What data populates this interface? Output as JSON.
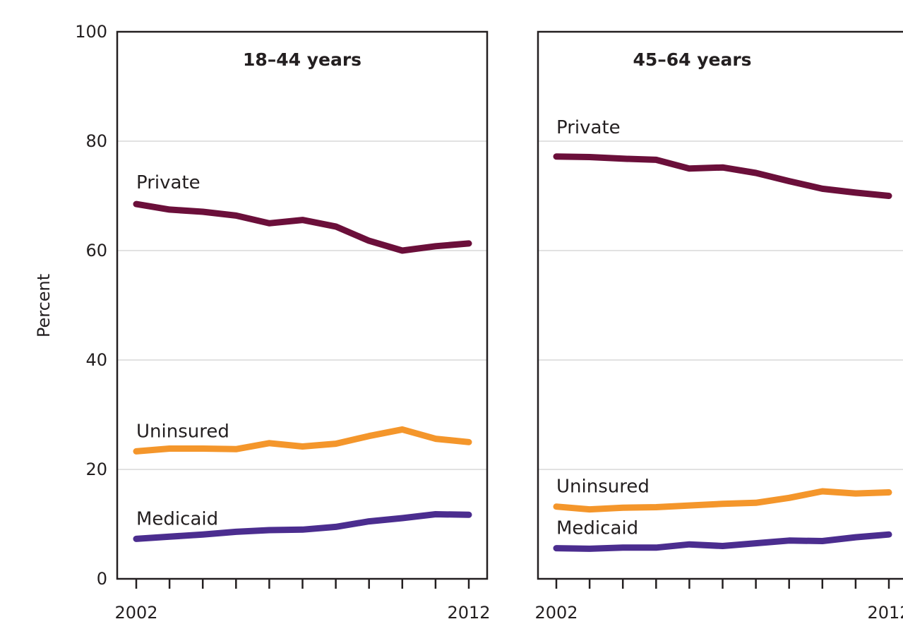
{
  "chart_data": {
    "type": "line",
    "ylabel": "Percent",
    "ylim": [
      0,
      100
    ],
    "yticks": [
      "0",
      "20",
      "40",
      "60",
      "80",
      "100"
    ],
    "x": [
      2002,
      2003,
      2004,
      2005,
      2006,
      2007,
      2008,
      2009,
      2010,
      2011,
      2012
    ],
    "x_tick_labels": [
      "2002",
      "2012"
    ],
    "grid": true,
    "colors": {
      "Private": "#6b0f3a",
      "Uninsured": "#f4962b",
      "Medicaid": "#4b2d8f",
      "grid": "#d9d9d9",
      "axis": "#231f20"
    },
    "panels": [
      {
        "title": "18–44 years",
        "series": [
          {
            "name": "Private",
            "values": [
              68.5,
              67.5,
              67.1,
              66.4,
              65.0,
              65.6,
              64.4,
              61.8,
              60.0,
              60.8,
              61.3
            ]
          },
          {
            "name": "Uninsured",
            "values": [
              23.3,
              23.8,
              23.8,
              23.7,
              24.8,
              24.2,
              24.7,
              26.1,
              27.3,
              25.6,
              25.0
            ]
          },
          {
            "name": "Medicaid",
            "values": [
              7.3,
              7.7,
              8.1,
              8.6,
              8.9,
              9.0,
              9.5,
              10.5,
              11.1,
              11.8,
              11.7
            ]
          }
        ]
      },
      {
        "title": "45–64 years",
        "series": [
          {
            "name": "Private",
            "values": [
              77.2,
              77.1,
              76.8,
              76.6,
              75.0,
              75.2,
              74.2,
              72.7,
              71.3,
              70.6,
              70.0
            ]
          },
          {
            "name": "Uninsured",
            "values": [
              13.2,
              12.7,
              13.0,
              13.1,
              13.4,
              13.7,
              13.9,
              14.8,
              16.0,
              15.6,
              15.8
            ]
          },
          {
            "name": "Medicaid",
            "values": [
              5.6,
              5.5,
              5.7,
              5.7,
              6.3,
              6.0,
              6.5,
              7.0,
              6.9,
              7.6,
              8.1
            ]
          }
        ]
      }
    ]
  }
}
